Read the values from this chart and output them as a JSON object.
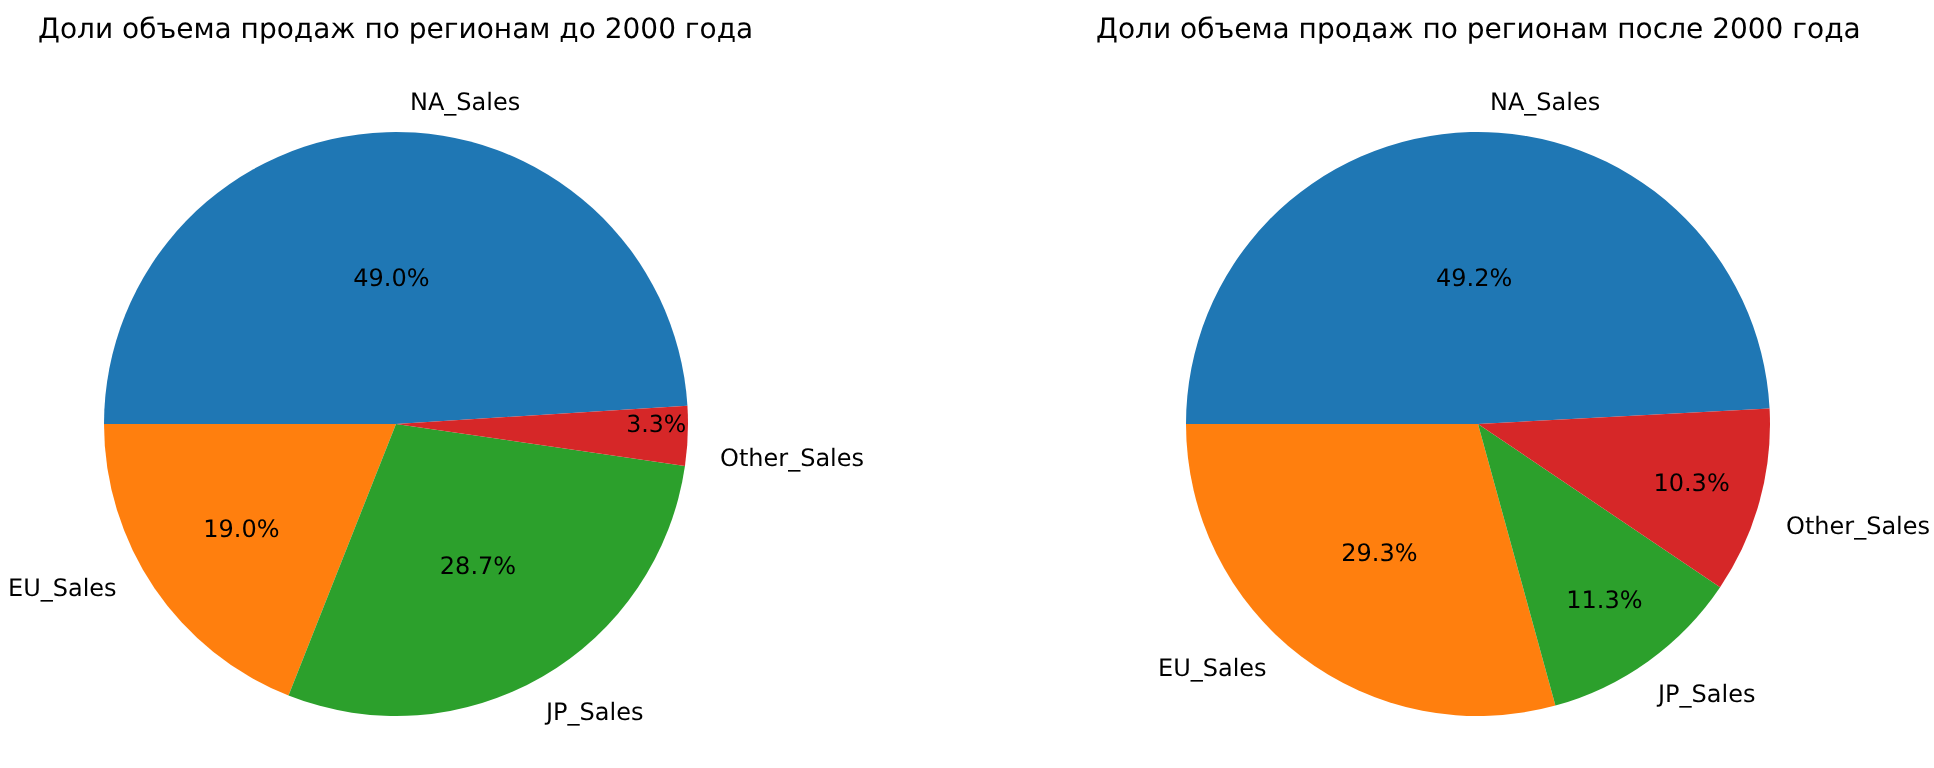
{
  "chart_data": [
    {
      "type": "pie",
      "title": "Доли объема продаж по регионам до 2000 года",
      "categories": [
        "NA_Sales",
        "EU_Sales",
        "JP_Sales",
        "Other_Sales"
      ],
      "values": [
        49.0,
        19.0,
        28.7,
        3.3
      ],
      "colors": [
        "#1f77b4",
        "#ff7f0e",
        "#2ca02c",
        "#d62728"
      ],
      "value_labels": [
        "49.0%",
        "19.0%",
        "28.7%",
        "3.3%"
      ]
    },
    {
      "type": "pie",
      "title": "Доли объема продаж по регионам после 2000 года",
      "categories": [
        "NA_Sales",
        "EU_Sales",
        "JP_Sales",
        "Other_Sales"
      ],
      "values": [
        49.2,
        29.3,
        11.3,
        10.3
      ],
      "colors": [
        "#1f77b4",
        "#ff7f0e",
        "#2ca02c",
        "#d62728"
      ],
      "value_labels": [
        "49.2%",
        "29.3%",
        "11.3%",
        "10.3%"
      ]
    }
  ]
}
